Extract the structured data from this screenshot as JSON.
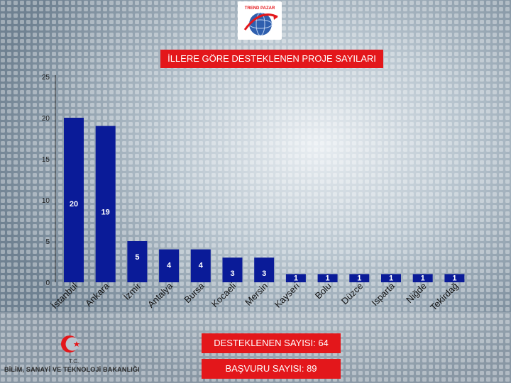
{
  "chart_data": {
    "type": "bar",
    "title": "İLLERE GÖRE DESTEKLENEN PROJE SAYILARI",
    "categories": [
      "İstanbul",
      "Ankara",
      "İzmir",
      "Antalya",
      "Bursa",
      "Kocaeli",
      "Mersin",
      "Kayseri",
      "Bolu",
      "Düzce",
      "Isparta",
      "Niğde",
      "Tekirdağ"
    ],
    "values": [
      20,
      19,
      5,
      4,
      4,
      3,
      3,
      1,
      1,
      1,
      1,
      1,
      1
    ],
    "ylim": [
      0,
      25
    ],
    "yticks": [
      0,
      5,
      10,
      15,
      20,
      25
    ],
    "xlabel": "",
    "ylabel": "",
    "colors": {
      "bar": "#0a1b98",
      "title_bg": "#e3171b",
      "label_fill": "#ffffff"
    }
  },
  "summary": {
    "supported": "DESTEKLENEN SAYISI: 64",
    "applications": "BAŞVURU SAYISI: 89"
  },
  "footer": {
    "tc": "T.C.",
    "ministry": "BİLİM, SANAYİ VE TEKNOLOJİ BAKANLIĞI"
  },
  "logo": {
    "icon": "globe-logo-icon",
    "text": "TREND PAZAR"
  }
}
